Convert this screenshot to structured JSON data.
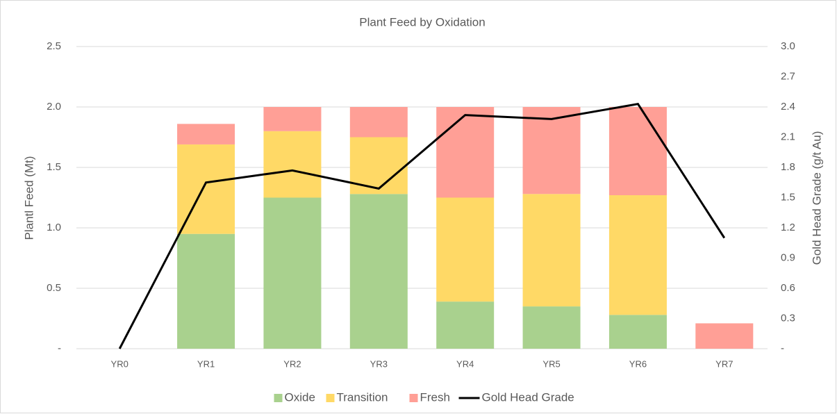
{
  "chart_data": {
    "type": "bar",
    "stacked": true,
    "title": "Plant Feed by Oxidation",
    "y_label": "Plantl Feed (Mt)",
    "y2_label": "Gold Head Grade (g/t Au)",
    "categories": [
      "YR0",
      "YR1",
      "YR2",
      "YR3",
      "YR4",
      "YR5",
      "YR6",
      "YR7"
    ],
    "series": [
      {
        "name": "Oxide",
        "color": "#a9d18e",
        "type": "bar",
        "values": [
          0,
          0.95,
          1.25,
          1.28,
          0.39,
          0.35,
          0.28,
          0
        ]
      },
      {
        "name": "Transition",
        "color": "#ffd966",
        "type": "bar",
        "values": [
          0,
          0.74,
          0.55,
          0.47,
          0.86,
          0.93,
          0.99,
          0
        ]
      },
      {
        "name": "Fresh",
        "color": "#ff9f96",
        "type": "bar",
        "values": [
          0,
          0.17,
          0.2,
          0.25,
          0.75,
          0.72,
          0.73,
          0.21
        ]
      },
      {
        "name": "Gold Head Grade",
        "color": "#000000",
        "type": "line",
        "axis": "y2",
        "values": [
          0,
          1.65,
          1.77,
          1.59,
          2.32,
          2.28,
          2.43,
          1.1
        ]
      }
    ],
    "ylim": [
      0,
      2.5
    ],
    "yticks": [
      {
        "value": 0,
        "label": "-"
      },
      0.5,
      {
        "value": 1,
        "label": "1.0"
      },
      1.5,
      {
        "value": 2,
        "label": "2.0"
      },
      2.5
    ],
    "y2lim": [
      0,
      3
    ],
    "y2ticks": [
      {
        "value": 0,
        "label": "-"
      },
      0.3,
      0.6,
      0.9,
      1.2,
      1.5,
      1.8,
      2.1,
      2.4,
      2.7,
      {
        "value": 3,
        "label": "3.0"
      }
    ],
    "grid": true,
    "legend": "bottom"
  }
}
